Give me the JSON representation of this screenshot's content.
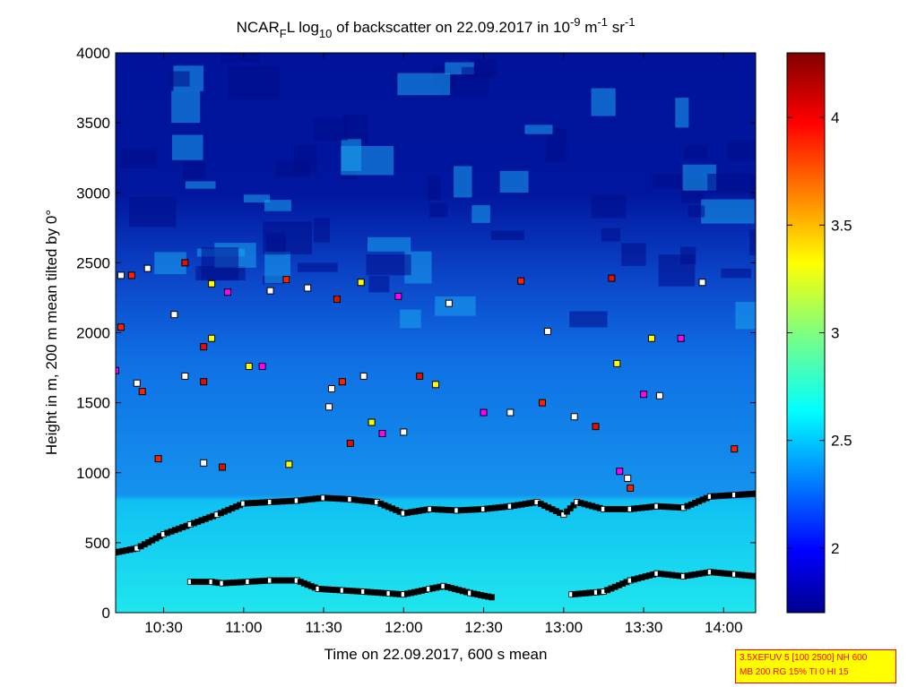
{
  "chart_data": {
    "type": "heatmap",
    "title": {
      "prefix": "NCAR",
      "sub": "F",
      "mid1": "L log",
      "sub2": "10",
      "mid2": " of backscatter on 22.09.2017 in 10",
      "sup1": "-9",
      "mid3": " m",
      "sup2": "-1",
      "mid4": " sr",
      "sup3": "-1"
    },
    "xlabel": "Time on 22.09.2017, 600 s mean",
    "ylabel": "Height in m, 200 m mean tilted by 0°",
    "xlim": [
      "10:12",
      "14:12"
    ],
    "ylim": [
      0,
      4000
    ],
    "x_ticks": [
      "10:30",
      "11:00",
      "11:30",
      "12:00",
      "12:30",
      "13:00",
      "13:30",
      "14:00"
    ],
    "y_ticks": [
      "0",
      "500",
      "1000",
      "1500",
      "2000",
      "2500",
      "3000",
      "3500",
      "4000"
    ],
    "colorbar": {
      "colormap": "jet",
      "range": [
        1.7,
        4.3
      ],
      "ticks": [
        "2",
        "2.5",
        "3",
        "3.5",
        "4"
      ]
    },
    "background_field": {
      "description_levels": "log10 backscatter decreasing with height",
      "layers": [
        {
          "height_range": [
            0,
            800
          ],
          "value": 2.6
        },
        {
          "height_range": [
            800,
            2000
          ],
          "value": 2.15
        },
        {
          "height_range": [
            2000,
            4000
          ],
          "value": 1.85
        }
      ]
    },
    "series": [
      {
        "points": [
          [
            "10:12",
            430
          ],
          [
            "10:20",
            460
          ],
          [
            "10:30",
            560
          ],
          [
            "10:40",
            630
          ],
          [
            "10:50",
            700
          ],
          [
            "11:00",
            780
          ],
          [
            "11:10",
            790
          ],
          [
            "11:20",
            800
          ],
          [
            "11:30",
            820
          ],
          [
            "11:40",
            810
          ],
          [
            "11:50",
            790
          ],
          [
            "12:00",
            710
          ],
          [
            "12:10",
            740
          ],
          [
            "12:20",
            730
          ],
          [
            "12:30",
            740
          ],
          [
            "12:40",
            760
          ],
          [
            "12:50",
            790
          ],
          [
            "13:00",
            700
          ],
          [
            "13:05",
            790
          ],
          [
            "13:15",
            740
          ],
          [
            "13:25",
            740
          ],
          [
            "13:35",
            760
          ],
          [
            "13:45",
            750
          ],
          [
            "13:55",
            830
          ],
          [
            "14:12",
            850
          ]
        ]
      },
      {
        "points": [
          [
            "10:40",
            220
          ],
          [
            "10:48",
            220
          ],
          [
            "10:52",
            210
          ],
          [
            "11:10",
            230
          ],
          [
            "11:20",
            230
          ],
          [
            "11:28",
            170
          ],
          [
            "11:45",
            150
          ],
          [
            "12:00",
            130
          ],
          [
            "12:15",
            190
          ],
          [
            "12:25",
            140
          ],
          [
            "12:33",
            110
          ],
          [
            "13:03",
            130
          ],
          [
            "13:15",
            150
          ],
          [
            "13:25",
            230
          ],
          [
            "13:35",
            280
          ],
          [
            "13:45",
            260
          ],
          [
            "13:55",
            290
          ],
          [
            "14:12",
            260
          ]
        ]
      },
      {
        "points": [
          [
            "10:14",
            2410
          ],
          [
            "10:18",
            2410
          ],
          [
            "10:24",
            2460
          ],
          [
            "10:38",
            2500
          ],
          [
            "10:48",
            2350
          ],
          [
            "10:54",
            2290
          ],
          [
            "11:10",
            2300
          ],
          [
            "11:16",
            2380
          ],
          [
            "11:24",
            2320
          ],
          [
            "11:35",
            2240
          ],
          [
            "11:44",
            2360
          ],
          [
            "11:58",
            2260
          ],
          [
            "12:17",
            2210
          ],
          [
            "12:44",
            2370
          ],
          [
            "12:54",
            2010
          ],
          [
            "13:18",
            2390
          ],
          [
            "13:33",
            1960
          ],
          [
            "13:44",
            1960
          ],
          [
            "13:52",
            2360
          ],
          [
            "10:14",
            2040
          ],
          [
            "10:34",
            2130
          ],
          [
            "10:45",
            1900
          ],
          [
            "10:48",
            1960
          ],
          [
            "10:12",
            1730
          ],
          [
            "10:20",
            1640
          ],
          [
            "10:22",
            1580
          ],
          [
            "10:38",
            1690
          ],
          [
            "10:45",
            1650
          ],
          [
            "11:02",
            1760
          ],
          [
            "11:07",
            1760
          ],
          [
            "11:33",
            1600
          ],
          [
            "11:37",
            1650
          ],
          [
            "11:45",
            1690
          ],
          [
            "12:06",
            1690
          ],
          [
            "12:12",
            1630
          ],
          [
            "12:30",
            1430
          ],
          [
            "12:40",
            1430
          ],
          [
            "12:52",
            1500
          ],
          [
            "13:04",
            1400
          ],
          [
            "13:12",
            1330
          ],
          [
            "13:20",
            1780
          ],
          [
            "13:30",
            1560
          ],
          [
            "13:36",
            1550
          ],
          [
            "14:04",
            1170
          ],
          [
            "11:32",
            1470
          ],
          [
            "11:40",
            1210
          ],
          [
            "11:48",
            1360
          ],
          [
            "11:52",
            1280
          ],
          [
            "12:00",
            1290
          ],
          [
            "10:28",
            1100
          ],
          [
            "10:45",
            1070
          ],
          [
            "10:52",
            1040
          ],
          [
            "11:17",
            1060
          ],
          [
            "13:21",
            1010
          ],
          [
            "13:24",
            960
          ],
          [
            "13:25",
            890
          ]
        ]
      }
    ]
  },
  "info_box": {
    "line1": "3.5XEFUV 5 [100 2500] NH 600",
    "line2": "MB 200 RG 15% TI 0 HI 15"
  }
}
